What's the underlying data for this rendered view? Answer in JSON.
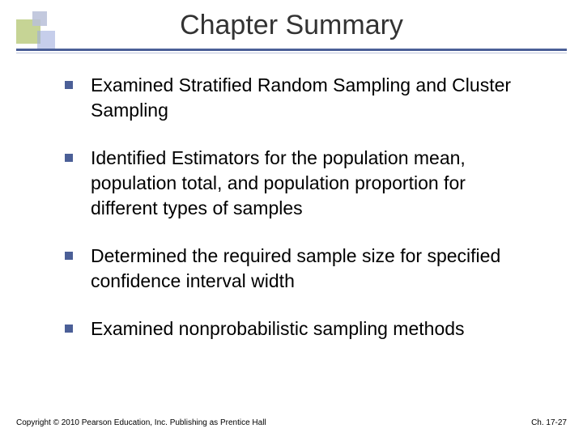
{
  "title": "Chapter Summary",
  "bullets": [
    "Examined Stratified Random Sampling and Cluster Sampling",
    "Identified Estimators for the population mean, population total, and population proportion for different types of samples",
    "Determined the required sample size for specified confidence interval width",
    "Examined nonprobabilistic sampling methods"
  ],
  "footer": {
    "left": "Copyright © 2010 Pearson Education, Inc. Publishing as Prentice Hall",
    "right": "Ch. 17-27"
  },
  "colors": {
    "accent": "#4b5f97",
    "deco_green": "#b8c97a",
    "deco_purple1": "#b8bfd8",
    "deco_purple2": "#a0aede"
  }
}
